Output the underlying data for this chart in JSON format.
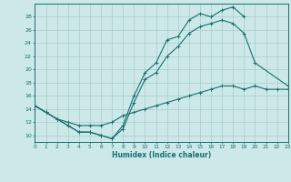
{
  "bg_color": "#cce8e8",
  "line_color": "#1a7070",
  "grid_color": "#aacccc",
  "xlabel": "Humidex (Indice chaleur)",
  "ylim": [
    9,
    30
  ],
  "xlim": [
    0,
    23
  ],
  "yticks": [
    10,
    12,
    14,
    16,
    18,
    20,
    22,
    24,
    26,
    28
  ],
  "xticks": [
    0,
    1,
    2,
    3,
    4,
    5,
    6,
    7,
    8,
    9,
    10,
    11,
    12,
    13,
    14,
    15,
    16,
    17,
    18,
    19,
    20,
    21,
    22,
    23
  ],
  "line1_x": [
    0,
    1,
    2,
    3,
    4,
    5,
    6,
    7,
    8,
    9,
    10,
    11,
    12,
    13,
    14,
    15,
    16,
    17,
    18,
    19
  ],
  "line1_y": [
    14.5,
    13.5,
    12.5,
    11.5,
    10.5,
    10.5,
    10.0,
    9.5,
    11.5,
    16.0,
    19.5,
    21.0,
    24.5,
    25.0,
    27.5,
    28.5,
    28.0,
    29.0,
    29.5,
    28.0
  ],
  "line2_x": [
    0,
    1,
    2,
    3,
    4,
    5,
    6,
    7,
    8,
    9,
    10,
    11,
    12,
    13,
    14,
    15,
    16,
    17,
    18,
    19,
    20,
    23
  ],
  "line2_y": [
    14.5,
    13.5,
    12.5,
    11.5,
    10.5,
    10.5,
    10.0,
    9.5,
    11.0,
    15.0,
    18.5,
    19.5,
    22.0,
    23.5,
    25.5,
    26.5,
    27.0,
    27.5,
    27.0,
    25.5,
    21.0,
    17.5
  ],
  "line3_x": [
    0,
    1,
    2,
    3,
    4,
    5,
    6,
    7,
    8,
    9,
    10,
    11,
    12,
    13,
    14,
    15,
    16,
    17,
    18,
    19,
    20,
    21,
    22,
    23
  ],
  "line3_y": [
    14.5,
    13.5,
    12.5,
    12.0,
    11.5,
    11.5,
    11.5,
    12.0,
    13.0,
    13.5,
    14.0,
    14.5,
    15.0,
    15.5,
    16.0,
    16.5,
    17.0,
    17.5,
    17.5,
    17.0,
    17.5,
    17.0,
    17.0,
    17.0
  ]
}
